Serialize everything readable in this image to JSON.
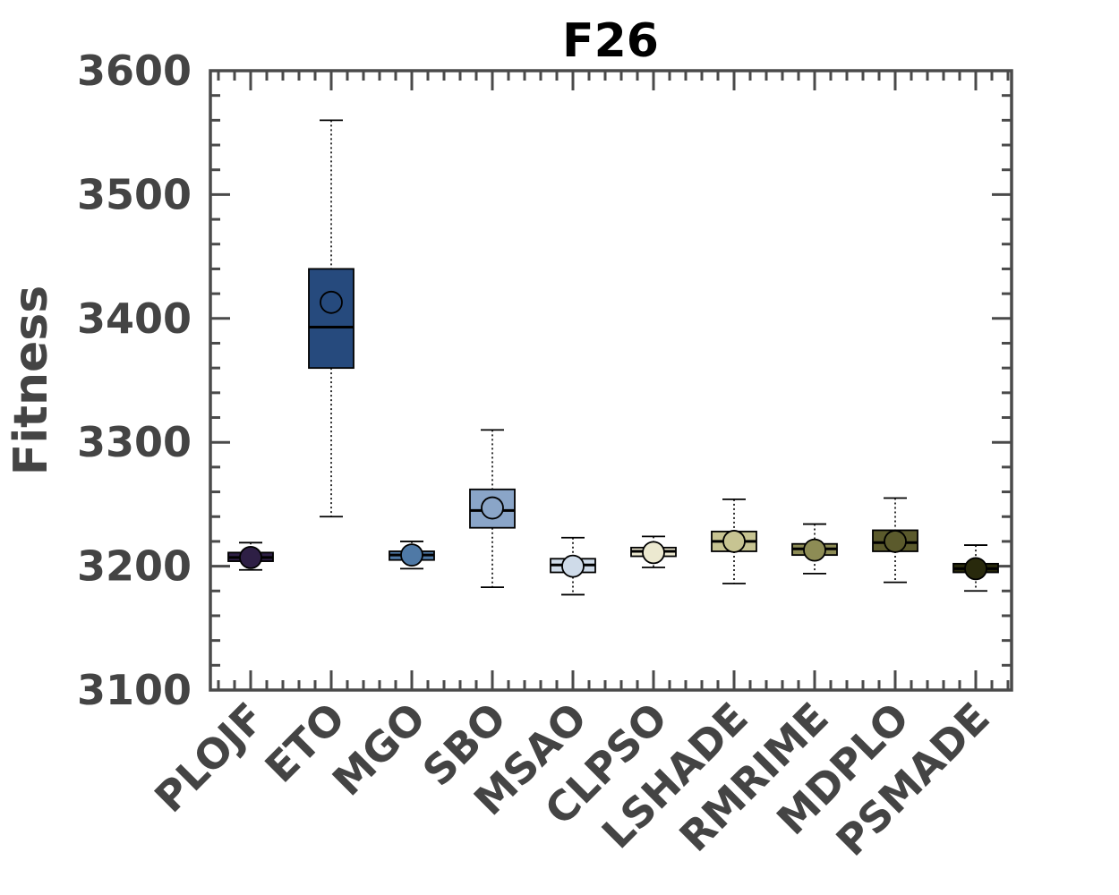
{
  "chart_data": {
    "type": "boxplot",
    "title": "F26",
    "ylabel": "Fitness",
    "xlabel": "",
    "ylim": [
      3100,
      3600
    ],
    "yticks": [
      3100,
      3200,
      3300,
      3400,
      3500,
      3600
    ],
    "grid": false,
    "legend": "none",
    "categories": [
      "PLOJF",
      "ETO",
      "MGO",
      "SBO",
      "MSAO",
      "CLPSO",
      "LSHADE",
      "RMRIME",
      "MDPLO",
      "PSMADE"
    ],
    "series": [
      {
        "whisker_low": 3197,
        "q1": 3204,
        "median": 3207,
        "q3": 3211,
        "whisker_high": 3219,
        "mean": 3207,
        "color": "#2e1f45"
      },
      {
        "whisker_low": 3240,
        "q1": 3360,
        "median": 3393,
        "q3": 3440,
        "whisker_high": 3560,
        "mean": 3413,
        "color": "#264a7d"
      },
      {
        "whisker_low": 3198,
        "q1": 3205,
        "median": 3209,
        "q3": 3212,
        "whisker_high": 3220,
        "mean": 3209,
        "color": "#4f79a6"
      },
      {
        "whisker_low": 3183,
        "q1": 3231,
        "median": 3245,
        "q3": 3262,
        "whisker_high": 3310,
        "mean": 3247,
        "color": "#8aa5c8"
      },
      {
        "whisker_low": 3177,
        "q1": 3195,
        "median": 3201,
        "q3": 3206,
        "whisker_high": 3223,
        "mean": 3200,
        "color": "#cfdbe9"
      },
      {
        "whisker_low": 3199,
        "q1": 3208,
        "median": 3212,
        "q3": 3215,
        "whisker_high": 3224,
        "mean": 3211,
        "color": "#ece9d0"
      },
      {
        "whisker_low": 3186,
        "q1": 3212,
        "median": 3220,
        "q3": 3228,
        "whisker_high": 3254,
        "mean": 3220,
        "color": "#c7c492"
      },
      {
        "whisker_low": 3194,
        "q1": 3209,
        "median": 3214,
        "q3": 3218,
        "whisker_high": 3234,
        "mean": 3213,
        "color": "#8d8c55"
      },
      {
        "whisker_low": 3187,
        "q1": 3212,
        "median": 3219,
        "q3": 3229,
        "whisker_high": 3255,
        "mean": 3220,
        "color": "#5b5a2c"
      },
      {
        "whisker_low": 3180,
        "q1": 3195,
        "median": 3198,
        "q3": 3202,
        "whisker_high": 3217,
        "mean": 3198,
        "color": "#28290c"
      }
    ]
  }
}
